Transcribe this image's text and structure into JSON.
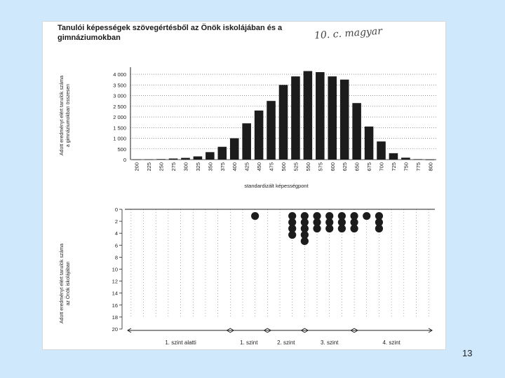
{
  "slide": {
    "number": "13"
  },
  "handwritten_note": "10. c. magyar",
  "chart_data": [
    {
      "type": "bar",
      "title_lines": [
        "Tanulói képességek szövegértésből az Önök iskolájában és a",
        "gimnáziumokban"
      ],
      "ylabel_lines": [
        "Adott eredményt elért tanulók száma",
        "a gimnáziumokban összesen"
      ],
      "xlabel": "standardizált képességpont",
      "categories": [
        "200",
        "225",
        "250",
        "275",
        "300",
        "325",
        "350",
        "375",
        "400",
        "425",
        "450",
        "475",
        "500",
        "525",
        "550",
        "575",
        "600",
        "625",
        "650",
        "675",
        "700",
        "725",
        "750",
        "775",
        "800"
      ],
      "values": [
        10,
        15,
        25,
        50,
        80,
        150,
        350,
        600,
        1000,
        1700,
        2300,
        2750,
        3500,
        3900,
        4150,
        4100,
        3900,
        3750,
        2650,
        1550,
        850,
        300,
        90,
        20,
        5
      ],
      "yticks": [
        "0",
        "500",
        "1 000",
        "1 500",
        "2 000",
        "2 500",
        "3 000",
        "3 500",
        "4 000"
      ],
      "ylim": [
        0,
        4200
      ],
      "grid": true,
      "bar_color": "#1c1c1c"
    },
    {
      "type": "scatter",
      "ylabel_lines": [
        "Adott eredményt elért tanulók száma",
        "az Önök iskolájában"
      ],
      "categories": [
        "200",
        "225",
        "250",
        "275",
        "300",
        "325",
        "350",
        "375",
        "400",
        "425",
        "450",
        "475",
        "500",
        "525",
        "550",
        "575",
        "600",
        "625",
        "650",
        "675",
        "700",
        "725",
        "750",
        "775",
        "800"
      ],
      "counts": [
        0,
        0,
        0,
        0,
        0,
        0,
        0,
        0,
        0,
        0,
        1,
        0,
        0,
        4,
        5,
        3,
        3,
        3,
        3,
        1,
        3,
        0,
        0,
        0,
        0
      ],
      "yticks": [
        "0",
        "2",
        "4",
        "6",
        "8",
        "10",
        "12",
        "14",
        "16",
        "18",
        "20"
      ],
      "ylim": [
        0,
        20
      ],
      "levels": [
        {
          "label": "1. szint alatti",
          "from": "200",
          "to": "400"
        },
        {
          "label": "1. szint",
          "from": "400",
          "to": "475"
        },
        {
          "label": "2. szint",
          "from": "475",
          "to": "550"
        },
        {
          "label": "3. szint",
          "from": "550",
          "to": "650"
        },
        {
          "label": "4. szint",
          "from": "650",
          "to": "800"
        }
      ],
      "marker_color": "#1c1c1c"
    }
  ]
}
